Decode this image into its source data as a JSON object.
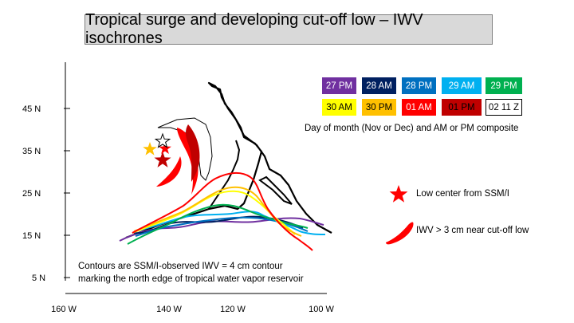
{
  "title": "Tropical surge and developing cut-off low – IWV isochrones",
  "axes": {
    "y_ticks": [
      "45 N",
      "35 N",
      "25 N",
      "15 N",
      "5 N"
    ],
    "x_ticks": [
      "160 W",
      "140 W",
      "120 W",
      "100 W"
    ]
  },
  "legend": {
    "items": [
      {
        "label": "27 PM",
        "color": "#7030a0",
        "text_color": "#ffffff"
      },
      {
        "label": "28 AM",
        "color": "#002060",
        "text_color": "#ffffff"
      },
      {
        "label": "28 PM",
        "color": "#0070c0",
        "text_color": "#ffffff"
      },
      {
        "label": "29 AM",
        "color": "#00b0f0",
        "text_color": "#ffffff"
      },
      {
        "label": "29 PM",
        "color": "#00b050",
        "text_color": "#ffffff"
      },
      {
        "label": "30 AM",
        "color": "#ffff00",
        "text_color": "#000000"
      },
      {
        "label": "30 PM",
        "color": "#ffc000",
        "text_color": "#000000"
      },
      {
        "label": "01 AM",
        "color": "#ff0000",
        "text_color": "#ffffff"
      },
      {
        "label": "01 PM",
        "color": "#c00000",
        "text_color": "#000000"
      },
      {
        "label": "02 11 Z",
        "color": "#ffffff",
        "text_color": "#000000"
      }
    ],
    "caption": "Day of month (Nov or Dec) and AM or PM composite",
    "low_center_label": "Low center from SSM/I",
    "iwv_label": "IWV > 3 cm near cut-off low"
  },
  "note": {
    "line1": "Contours are SSM/I-observed IWV = 4 cm contour",
    "line2": "marking the north edge of tropical water vapor reservoir"
  },
  "colors": {
    "coast": "#000000",
    "low_center": "#ff0000",
    "iwv_blob": "#ff0000"
  }
}
